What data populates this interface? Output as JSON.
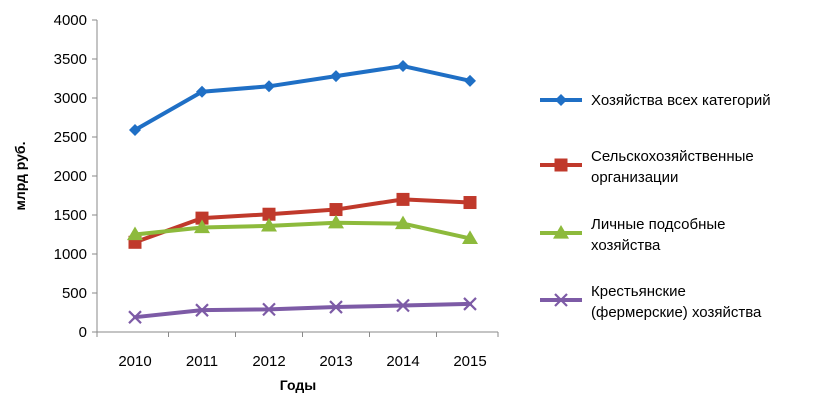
{
  "chart_data": {
    "type": "line",
    "title": "",
    "xlabel": "Годы",
    "ylabel": "млрд руб.",
    "x": [
      "2010",
      "2011",
      "2012",
      "2013",
      "2014",
      "2015"
    ],
    "ylim": [
      0,
      4000
    ],
    "yticks": [
      0,
      500,
      1000,
      1500,
      2000,
      2500,
      3000,
      3500,
      4000
    ],
    "grid": false,
    "legend_position": "right",
    "series": [
      {
        "name": "Хозяйства всех категорий",
        "legend_lines": [
          "Хозяйства всех категорий"
        ],
        "color": "#1F6FC5",
        "marker": "diamond",
        "values": [
          2590,
          3080,
          3150,
          3280,
          3410,
          3220
        ]
      },
      {
        "name": "Сельскохозяйственные организации",
        "legend_lines": [
          "Сельскохозяйственные",
          "организации"
        ],
        "color": "#C0392B",
        "marker": "square",
        "values": [
          1150,
          1460,
          1510,
          1570,
          1700,
          1660
        ]
      },
      {
        "name": "Личные подсобные хозяйства",
        "legend_lines": [
          "Личные подсобные",
          "хозяйства"
        ],
        "color": "#8DBA3C",
        "marker": "triangle",
        "values": [
          1250,
          1340,
          1360,
          1400,
          1390,
          1200
        ]
      },
      {
        "name": "Крестьянские (фермерские) хозяйства",
        "legend_lines": [
          "Крестьянские",
          "(фермерские) хозяйства"
        ],
        "color": "#7D5BA6",
        "marker": "x",
        "values": [
          190,
          280,
          290,
          320,
          340,
          360
        ]
      }
    ]
  }
}
